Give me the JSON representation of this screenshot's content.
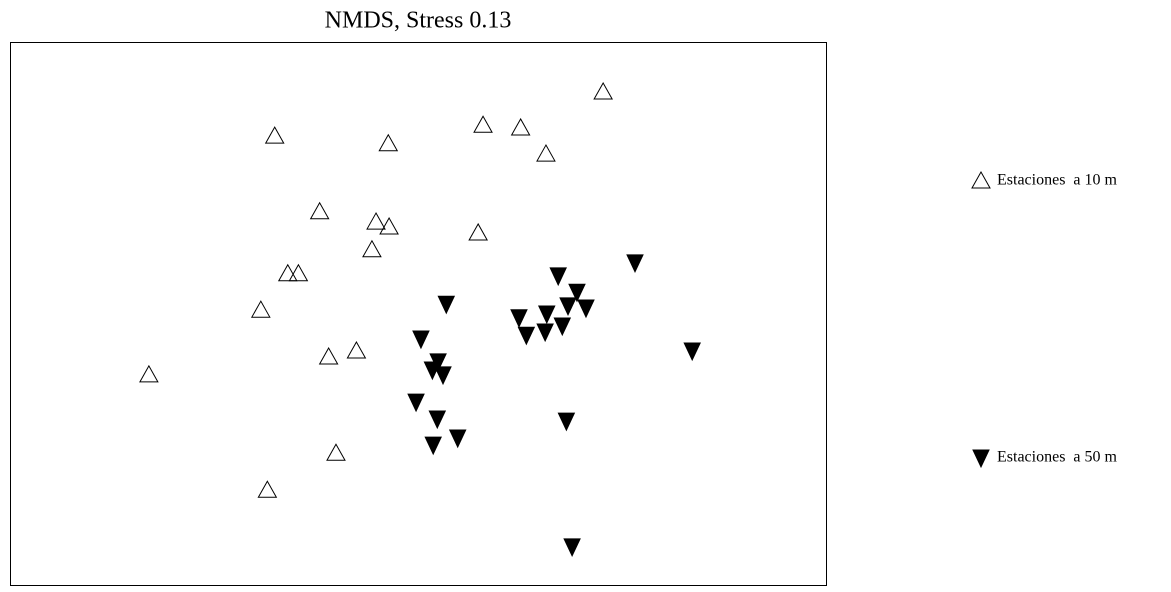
{
  "chart_data": {
    "type": "scatter",
    "title": "NMDS, Stress 0.13",
    "xlim": [
      0,
      100
    ],
    "ylim": [
      0,
      100
    ],
    "legend": "right",
    "series": [
      {
        "name": "Estaciones  a 10 m",
        "color": "#000000",
        "marker": "triangle-up",
        "filled": false,
        "x": [
          72.6,
          32.4,
          46.3,
          57.9,
          62.5,
          65.6,
          37.9,
          44.8,
          46.4,
          57.3,
          44.3,
          34.0,
          35.3,
          30.7,
          39.0,
          42.4,
          17.0,
          39.9,
          31.5
        ],
        "values": [
          90.8,
          82.7,
          81.3,
          84.7,
          84.2,
          79.4,
          68.8,
          66.9,
          66.0,
          64.9,
          61.8,
          57.4,
          57.4,
          50.7,
          42.1,
          43.2,
          38.8,
          24.4,
          17.6
        ]
      },
      {
        "name": "Estaciones  a 50 m",
        "color": "#000000",
        "marker": "triangle-down",
        "filled": true,
        "x": [
          76.5,
          67.1,
          53.4,
          69.4,
          68.3,
          70.5,
          62.3,
          65.7,
          67.6,
          65.5,
          63.2,
          50.3,
          52.4,
          51.7,
          53.0,
          83.5,
          49.7,
          52.3,
          68.1,
          54.8,
          51.8,
          68.8
        ],
        "values": [
          59.4,
          57.0,
          51.8,
          54.0,
          51.5,
          51.1,
          49.3,
          50.0,
          47.8,
          46.7,
          46.1,
          45.4,
          41.2,
          39.7,
          38.8,
          43.2,
          33.8,
          30.7,
          30.3,
          27.2,
          25.9,
          7.2
        ]
      }
    ]
  }
}
